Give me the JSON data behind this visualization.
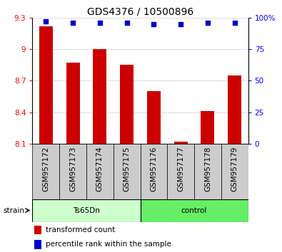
{
  "title": "GDS4376 / 10500896",
  "categories": [
    "GSM957172",
    "GSM957173",
    "GSM957174",
    "GSM957175",
    "GSM957176",
    "GSM957177",
    "GSM957178",
    "GSM957179"
  ],
  "bar_values": [
    9.22,
    8.87,
    9.0,
    8.85,
    8.6,
    8.12,
    8.41,
    8.75
  ],
  "percentile_values": [
    97,
    96,
    96,
    96,
    95,
    95,
    96,
    96
  ],
  "bar_color": "#cc0000",
  "dot_color": "#0000cc",
  "ylim_left": [
    8.1,
    9.3
  ],
  "ylim_right": [
    0,
    100
  ],
  "yticks_left": [
    8.1,
    8.4,
    8.7,
    9.0,
    9.3
  ],
  "ytick_labels_left": [
    "8.1",
    "8.4",
    "8.7",
    "9",
    "9.3"
  ],
  "yticks_right": [
    0,
    25,
    50,
    75,
    100
  ],
  "ytick_labels_right": [
    "0",
    "25",
    "50",
    "75",
    "100%"
  ],
  "group1_label": "Ts65Dn",
  "group2_label": "control",
  "group1_indices": [
    0,
    1,
    2,
    3
  ],
  "group2_indices": [
    4,
    5,
    6,
    7
  ],
  "group1_color": "#ccffcc",
  "group2_color": "#66ee66",
  "strain_label": "strain",
  "legend_bar_label": "transformed count",
  "legend_dot_label": "percentile rank within the sample",
  "grid_color": "#888888",
  "bar_bottom": 8.1,
  "plot_bg_color": "#ffffff",
  "tick_box_color": "#cccccc",
  "bar_width": 0.5,
  "title_fontsize": 10,
  "tick_fontsize": 7.5,
  "label_fontsize": 7.5
}
